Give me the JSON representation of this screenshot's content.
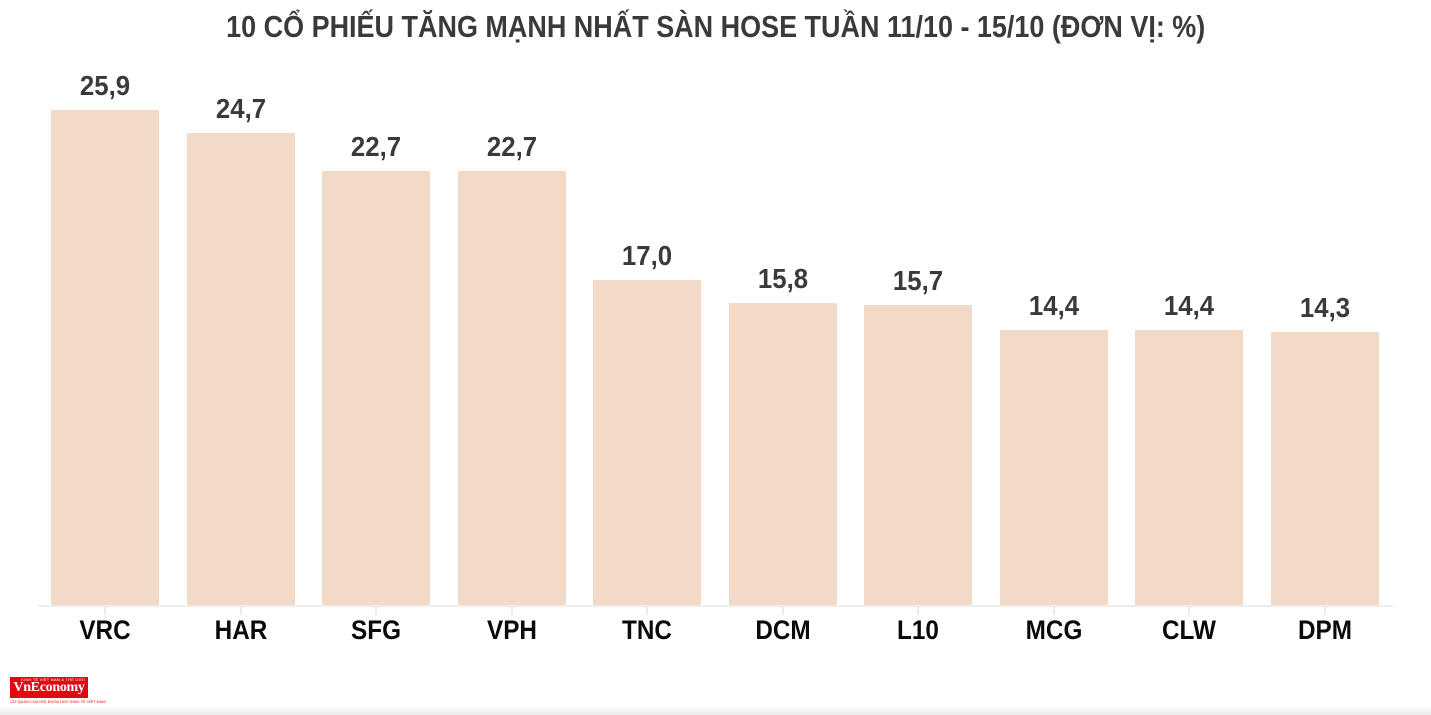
{
  "page": {
    "background_color": "#ffffff"
  },
  "chart_data": {
    "type": "bar",
    "title": "10 CỔ PHIẾU TĂNG MẠNH NHẤT SÀN HOSE TUẦN 11/10 - 15/10 (ĐƠN VỊ: %)",
    "categories": [
      "VRC",
      "HAR",
      "SFG",
      "VPH",
      "TNC",
      "DCM",
      "L10",
      "MCG",
      "CLW",
      "DPM"
    ],
    "values": [
      25.9,
      24.7,
      22.7,
      22.7,
      17.0,
      15.8,
      15.7,
      14.4,
      14.4,
      14.3
    ],
    "value_labels": [
      "25,9",
      "24,7",
      "22,7",
      "22,7",
      "17,0",
      "15,8",
      "15,7",
      "14,4",
      "14,4",
      "14,3"
    ],
    "xlabel": "",
    "ylabel": "",
    "unit": "%",
    "ylim": [
      0,
      26
    ],
    "grid": false,
    "legend": false,
    "bar_color": "#f2dac6",
    "value_label_color": "#3a3a3a",
    "category_label_color": "#0a0a0a",
    "axis_color": "#ededed"
  },
  "footer": {
    "logo": {
      "brand": "VnEconomy",
      "tagline_top": "KINH TẾ VIỆT NAM & THẾ GIỚI",
      "tagline_bottom": "CƠ QUAN CỦA HỘI KHOA HỌC KINH TẾ VIỆT NAM",
      "background_color": "#e30613",
      "text_color": "#ffffff"
    }
  }
}
